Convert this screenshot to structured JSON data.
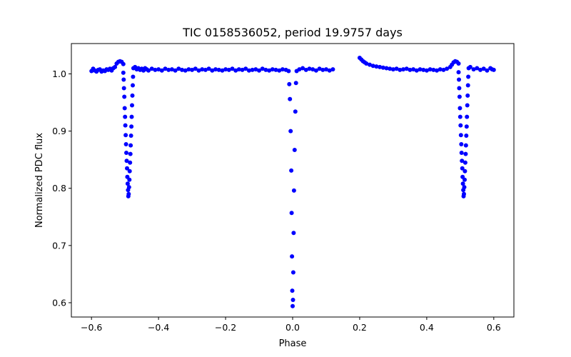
{
  "chart_data": {
    "type": "scatter",
    "title": "TIC 0158536052, period 19.9757 days",
    "xlabel": "Phase",
    "ylabel": "Normalized PDC flux",
    "xlim": [
      -0.66,
      0.66
    ],
    "ylim": [
      0.575,
      1.053
    ],
    "x_ticks": [
      -0.6,
      -0.4,
      -0.2,
      0.0,
      0.2,
      0.4,
      0.6
    ],
    "x_tick_labels": [
      "−0.6",
      "−0.4",
      "−0.2",
      "0.0",
      "0.2",
      "0.4",
      "0.6"
    ],
    "y_ticks": [
      0.6,
      0.7,
      0.8,
      0.9,
      1.0
    ],
    "y_tick_labels": [
      "0.6",
      "0.7",
      "0.8",
      "0.9",
      "1.0"
    ],
    "grid": false,
    "marker_color": "#0000ff",
    "series": [
      {
        "points": [
          [
            -0.6,
            1.005
          ],
          [
            -0.595,
            1.009
          ],
          [
            -0.59,
            1.006
          ],
          [
            -0.585,
            1.004
          ],
          [
            -0.58,
            1.007
          ],
          [
            -0.575,
            1.008
          ],
          [
            -0.57,
            1.004
          ],
          [
            -0.565,
            1.006
          ],
          [
            -0.56,
            1.005
          ],
          [
            -0.555,
            1.008
          ],
          [
            -0.55,
            1.007
          ],
          [
            -0.545,
            1.009
          ],
          [
            -0.54,
            1.006
          ],
          [
            -0.535,
            1.01
          ],
          [
            -0.53,
            1.012
          ],
          [
            -0.525,
            1.018
          ],
          [
            -0.52,
            1.021
          ],
          [
            -0.515,
            1.022
          ],
          [
            -0.51,
            1.021
          ],
          [
            -0.505,
            1.017
          ],
          [
            -0.505,
            1.002
          ],
          [
            -0.504,
            0.99
          ],
          [
            -0.503,
            0.975
          ],
          [
            -0.502,
            0.96
          ],
          [
            -0.501,
            0.94
          ],
          [
            -0.5,
            0.925
          ],
          [
            -0.499,
            0.91
          ],
          [
            -0.498,
            0.893
          ],
          [
            -0.497,
            0.877
          ],
          [
            -0.496,
            0.862
          ],
          [
            -0.495,
            0.848
          ],
          [
            -0.494,
            0.835
          ],
          [
            -0.493,
            0.82
          ],
          [
            -0.492,
            0.808
          ],
          [
            -0.491,
            0.797
          ],
          [
            -0.49,
            0.786
          ],
          [
            -0.489,
            0.79
          ],
          [
            -0.488,
            0.802
          ],
          [
            -0.487,
            0.815
          ],
          [
            -0.486,
            0.83
          ],
          [
            -0.485,
            0.845
          ],
          [
            -0.484,
            0.86
          ],
          [
            -0.483,
            0.875
          ],
          [
            -0.482,
            0.892
          ],
          [
            -0.481,
            0.908
          ],
          [
            -0.48,
            0.925
          ],
          [
            -0.479,
            0.945
          ],
          [
            -0.478,
            0.962
          ],
          [
            -0.477,
            0.98
          ],
          [
            -0.476,
            0.995
          ],
          [
            -0.475,
            1.01
          ],
          [
            -0.47,
            1.012
          ],
          [
            -0.465,
            1.008
          ],
          [
            -0.46,
            1.01
          ],
          [
            -0.455,
            1.007
          ],
          [
            -0.45,
            1.009
          ],
          [
            -0.445,
            1.006
          ],
          [
            -0.44,
            1.01
          ],
          [
            -0.435,
            1.008
          ],
          [
            -0.43,
            1.006
          ],
          [
            -0.42,
            1.009
          ],
          [
            -0.41,
            1.007
          ],
          [
            -0.4,
            1.008
          ],
          [
            -0.39,
            1.006
          ],
          [
            -0.38,
            1.009
          ],
          [
            -0.37,
            1.007
          ],
          [
            -0.36,
            1.008
          ],
          [
            -0.35,
            1.006
          ],
          [
            -0.34,
            1.009
          ],
          [
            -0.33,
            1.007
          ],
          [
            -0.32,
            1.006
          ],
          [
            -0.31,
            1.008
          ],
          [
            -0.3,
            1.007
          ],
          [
            -0.29,
            1.009
          ],
          [
            -0.28,
            1.006
          ],
          [
            -0.27,
            1.008
          ],
          [
            -0.26,
            1.007
          ],
          [
            -0.25,
            1.009
          ],
          [
            -0.24,
            1.006
          ],
          [
            -0.23,
            1.008
          ],
          [
            -0.22,
            1.007
          ],
          [
            -0.21,
            1.006
          ],
          [
            -0.2,
            1.008
          ],
          [
            -0.19,
            1.007
          ],
          [
            -0.18,
            1.009
          ],
          [
            -0.17,
            1.006
          ],
          [
            -0.16,
            1.008
          ],
          [
            -0.15,
            1.007
          ],
          [
            -0.14,
            1.009
          ],
          [
            -0.13,
            1.006
          ],
          [
            -0.12,
            1.007
          ],
          [
            -0.11,
            1.008
          ],
          [
            -0.1,
            1.006
          ],
          [
            -0.09,
            1.009
          ],
          [
            -0.08,
            1.007
          ],
          [
            -0.07,
            1.006
          ],
          [
            -0.06,
            1.008
          ],
          [
            -0.05,
            1.007
          ],
          [
            -0.04,
            1.006
          ],
          [
            -0.03,
            1.008
          ],
          [
            -0.02,
            1.007
          ],
          [
            -0.012,
            1.005
          ],
          [
            -0.01,
            0.982
          ],
          [
            -0.008,
            0.956
          ],
          [
            -0.006,
            0.9
          ],
          [
            -0.004,
            0.831
          ],
          [
            -0.003,
            0.757
          ],
          [
            -0.002,
            0.681
          ],
          [
            -0.001,
            0.621
          ],
          [
            0.0,
            0.594
          ],
          [
            0.001,
            0.605
          ],
          [
            0.002,
            0.653
          ],
          [
            0.003,
            0.722
          ],
          [
            0.004,
            0.796
          ],
          [
            0.006,
            0.867
          ],
          [
            0.008,
            0.934
          ],
          [
            0.01,
            0.984
          ],
          [
            0.012,
            1.005
          ],
          [
            0.02,
            1.008
          ],
          [
            0.03,
            1.01
          ],
          [
            0.04,
            1.007
          ],
          [
            0.05,
            1.009
          ],
          [
            0.06,
            1.008
          ],
          [
            0.07,
            1.006
          ],
          [
            0.08,
            1.009
          ],
          [
            0.09,
            1.007
          ],
          [
            0.1,
            1.008
          ],
          [
            0.11,
            1.006
          ],
          [
            0.12,
            1.008
          ],
          [
            0.2,
            1.028
          ],
          [
            0.205,
            1.025
          ],
          [
            0.21,
            1.022
          ],
          [
            0.215,
            1.02
          ],
          [
            0.22,
            1.018
          ],
          [
            0.23,
            1.016
          ],
          [
            0.24,
            1.014
          ],
          [
            0.25,
            1.013
          ],
          [
            0.26,
            1.012
          ],
          [
            0.27,
            1.011
          ],
          [
            0.28,
            1.01
          ],
          [
            0.29,
            1.009
          ],
          [
            0.3,
            1.008
          ],
          [
            0.31,
            1.009
          ],
          [
            0.32,
            1.007
          ],
          [
            0.33,
            1.008
          ],
          [
            0.34,
            1.009
          ],
          [
            0.35,
            1.007
          ],
          [
            0.36,
            1.008
          ],
          [
            0.37,
            1.006
          ],
          [
            0.38,
            1.008
          ],
          [
            0.39,
            1.007
          ],
          [
            0.4,
            1.006
          ],
          [
            0.41,
            1.008
          ],
          [
            0.42,
            1.007
          ],
          [
            0.43,
            1.006
          ],
          [
            0.44,
            1.008
          ],
          [
            0.45,
            1.007
          ],
          [
            0.46,
            1.009
          ],
          [
            0.47,
            1.012
          ],
          [
            0.475,
            1.016
          ],
          [
            0.48,
            1.02
          ],
          [
            0.485,
            1.022
          ],
          [
            0.49,
            1.021
          ],
          [
            0.495,
            1.018
          ],
          [
            0.495,
            1.003
          ],
          [
            0.496,
            0.99
          ],
          [
            0.497,
            0.975
          ],
          [
            0.498,
            0.96
          ],
          [
            0.499,
            0.94
          ],
          [
            0.5,
            0.925
          ],
          [
            0.501,
            0.91
          ],
          [
            0.502,
            0.893
          ],
          [
            0.503,
            0.877
          ],
          [
            0.504,
            0.862
          ],
          [
            0.505,
            0.848
          ],
          [
            0.506,
            0.835
          ],
          [
            0.507,
            0.82
          ],
          [
            0.508,
            0.808
          ],
          [
            0.509,
            0.797
          ],
          [
            0.51,
            0.786
          ],
          [
            0.511,
            0.79
          ],
          [
            0.512,
            0.802
          ],
          [
            0.513,
            0.815
          ],
          [
            0.514,
            0.83
          ],
          [
            0.515,
            0.845
          ],
          [
            0.516,
            0.86
          ],
          [
            0.517,
            0.875
          ],
          [
            0.518,
            0.892
          ],
          [
            0.519,
            0.908
          ],
          [
            0.52,
            0.925
          ],
          [
            0.521,
            0.945
          ],
          [
            0.522,
            0.962
          ],
          [
            0.523,
            0.98
          ],
          [
            0.524,
            0.995
          ],
          [
            0.525,
            1.01
          ],
          [
            0.53,
            1.012
          ],
          [
            0.54,
            1.008
          ],
          [
            0.55,
            1.01
          ],
          [
            0.56,
            1.007
          ],
          [
            0.57,
            1.009
          ],
          [
            0.58,
            1.006
          ],
          [
            0.59,
            1.01
          ],
          [
            0.595,
            1.008
          ],
          [
            0.6,
            1.007
          ]
        ]
      }
    ]
  }
}
